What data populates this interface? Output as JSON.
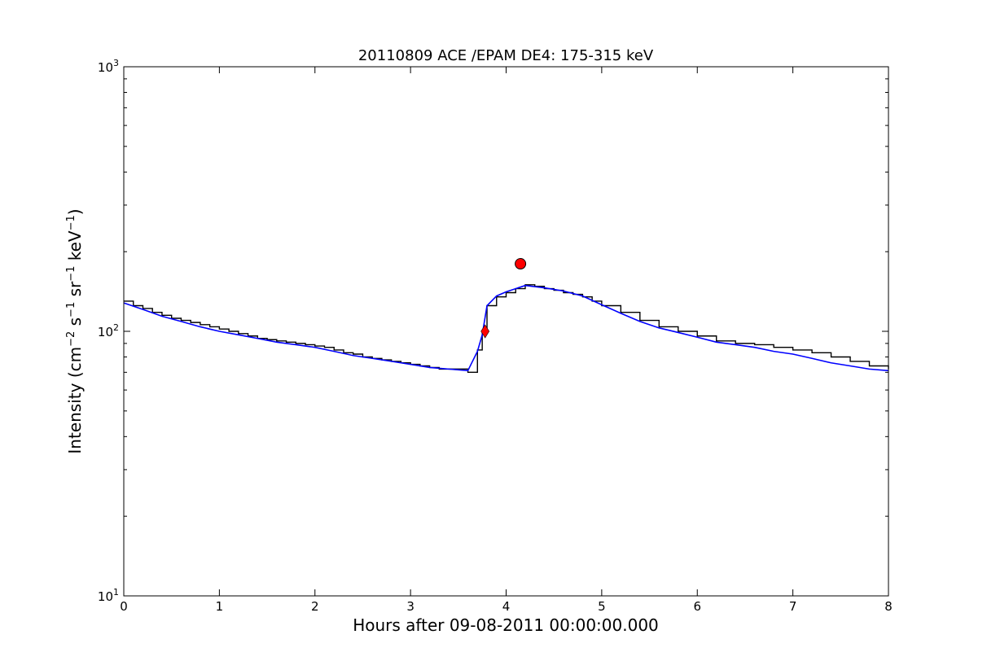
{
  "chart_data": {
    "type": "line",
    "title": "20110809 ACE /EPAM DE4: 175-315 keV",
    "xlabel": "Hours after 09-08-2011 00:00:00.000",
    "ylabel": {
      "prefix": "Intensity (cm",
      "sup1": "−2",
      "s": " s",
      "sup2": "−1",
      "sr": " sr",
      "sup3": "−1",
      "kev": " keV",
      "sup4": "−1",
      "suffix": ")"
    },
    "xlim": [
      0,
      8
    ],
    "ylim": [
      10,
      1000
    ],
    "yscale": "log",
    "grid": false,
    "x_ticks": [
      "0",
      "1",
      "2",
      "3",
      "4",
      "5",
      "6",
      "7",
      "8"
    ],
    "y_ticks": [
      {
        "base": "10",
        "exp": "1",
        "value": 10
      },
      {
        "base": "10",
        "exp": "2",
        "value": 100
      },
      {
        "base": "10",
        "exp": "3",
        "value": 1000
      }
    ],
    "colors": {
      "raw": "#000000",
      "smoothed": "#0000ff",
      "marker": "#ff0000",
      "marker_edge": "#000000"
    },
    "series": [
      {
        "style": "black-step",
        "x": [
          0.0,
          0.1,
          0.2,
          0.3,
          0.4,
          0.5,
          0.6,
          0.7,
          0.8,
          0.9,
          1.0,
          1.1,
          1.2,
          1.3,
          1.4,
          1.5,
          1.6,
          1.7,
          1.8,
          1.9,
          2.0,
          2.1,
          2.2,
          2.3,
          2.4,
          2.5,
          2.6,
          2.7,
          2.8,
          2.9,
          3.0,
          3.1,
          3.2,
          3.3,
          3.4,
          3.5,
          3.6,
          3.7,
          3.75,
          3.8,
          3.9,
          4.0,
          4.1,
          4.2,
          4.3,
          4.4,
          4.5,
          4.6,
          4.7,
          4.8,
          4.9,
          5.0,
          5.2,
          5.4,
          5.6,
          5.8,
          6.0,
          6.2,
          6.4,
          6.6,
          6.8,
          7.0,
          7.2,
          7.4,
          7.6,
          7.8,
          8.0
        ],
        "y": [
          130,
          125,
          122,
          118,
          115,
          112,
          110,
          108,
          106,
          104,
          102,
          100,
          98,
          96,
          94,
          93,
          92,
          91,
          90,
          89,
          88,
          87,
          85,
          83,
          82,
          80,
          79,
          78,
          77,
          76,
          75,
          74,
          73,
          72,
          72,
          72,
          70,
          85,
          100,
          125,
          135,
          140,
          145,
          150,
          148,
          145,
          143,
          140,
          138,
          135,
          130,
          125,
          118,
          110,
          104,
          100,
          96,
          92,
          90,
          89,
          87,
          85,
          83,
          80,
          77,
          74,
          72
        ]
      },
      {
        "style": "blue-smoothed",
        "x": [
          0.0,
          0.2,
          0.4,
          0.6,
          0.8,
          1.0,
          1.2,
          1.4,
          1.6,
          1.8,
          2.0,
          2.2,
          2.4,
          2.6,
          2.8,
          3.0,
          3.2,
          3.4,
          3.6,
          3.7,
          3.75,
          3.8,
          3.9,
          4.0,
          4.2,
          4.4,
          4.6,
          4.8,
          5.0,
          5.2,
          5.4,
          5.6,
          5.8,
          6.0,
          6.2,
          6.4,
          6.6,
          6.8,
          7.0,
          7.2,
          7.4,
          7.6,
          7.8,
          8.0
        ],
        "y": [
          128,
          121,
          114,
          109,
          104,
          100,
          97,
          94,
          91,
          89,
          87,
          84,
          81,
          79,
          77,
          75,
          73,
          72,
          71,
          84,
          97,
          125,
          136,
          141,
          149,
          146,
          142,
          136,
          126,
          117,
          109,
          103,
          99,
          95,
          91,
          89,
          87,
          84,
          82,
          79,
          76,
          74,
          72,
          71
        ]
      }
    ],
    "markers": [
      {
        "shape": "diamond",
        "x": 3.78,
        "y": 100
      },
      {
        "shape": "circle",
        "x": 4.15,
        "y": 180
      }
    ]
  }
}
